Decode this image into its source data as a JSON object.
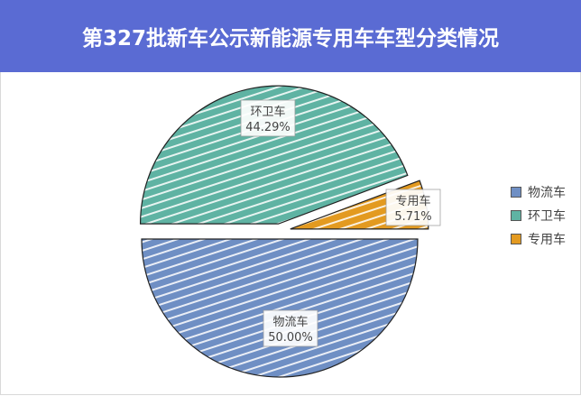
{
  "title": "第327批新车公示新能源专用车车型分类情况",
  "chart_data": {
    "type": "pie",
    "title": "第327批新车公示新能源专用车车型分类情况",
    "categories": [
      "物流车",
      "环卫车",
      "专用车"
    ],
    "values": [
      50.0,
      44.29,
      5.71
    ],
    "data_labels": [
      "50.00%",
      "44.29%",
      "5.71%"
    ],
    "colors": [
      "#6f8fc4",
      "#5fb3a3",
      "#e39a20"
    ],
    "legend_position": "right",
    "fill_style": "hatched"
  }
}
